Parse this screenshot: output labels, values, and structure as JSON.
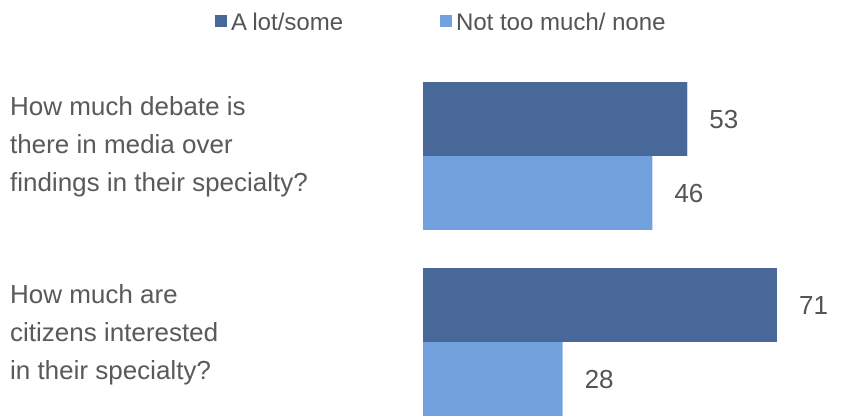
{
  "chart_data": {
    "type": "bar",
    "orientation": "horizontal",
    "categories": [
      [
        "How much debate  is",
        "there  in media over",
        "findings in their specialty?"
      ],
      [
        "How much are",
        "citizens interested",
        "in their specialty?"
      ]
    ],
    "series": [
      {
        "name": "A lot/some",
        "values": [
          53,
          71
        ],
        "color": "#48689a"
      },
      {
        "name": "Not too much/ none",
        "values": [
          46,
          28
        ],
        "color": "#73a1dd"
      }
    ],
    "xlim": [
      0,
      71
    ],
    "grid": false,
    "legend": "top-center"
  }
}
